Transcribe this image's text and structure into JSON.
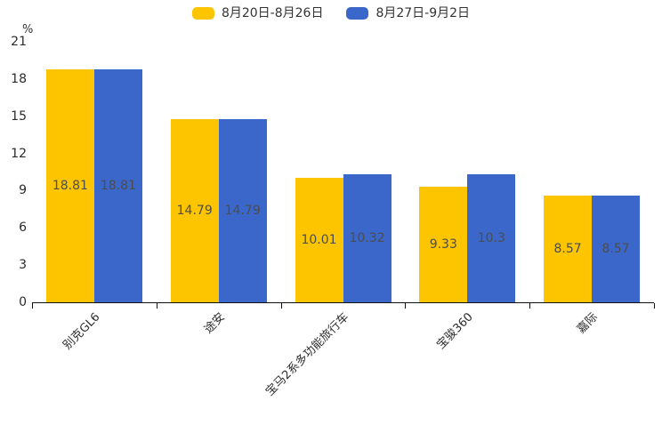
{
  "chart_data": {
    "type": "bar",
    "title": "",
    "xlabel": "",
    "ylabel": "%",
    "categories": [
      "别克GL6",
      "途安",
      "宝马2系多功能旅行车",
      "宝骏360",
      "嘉际"
    ],
    "series": [
      {
        "name": "8月20日-8月26日",
        "color": "#FDC500",
        "values": [
          18.81,
          14.79,
          10.01,
          9.33,
          8.57
        ]
      },
      {
        "name": "8月27日-9月2日",
        "color": "#3A67C9",
        "values": [
          18.81,
          14.79,
          10.32,
          10.3,
          8.57
        ]
      }
    ],
    "yticks": [
      0,
      3,
      6,
      9,
      12,
      15,
      18,
      21
    ],
    "ylim": [
      0,
      21
    ],
    "grid": false,
    "legend_position": "top",
    "value_labels": "inside-center",
    "category_label_rotation_deg": 45
  }
}
